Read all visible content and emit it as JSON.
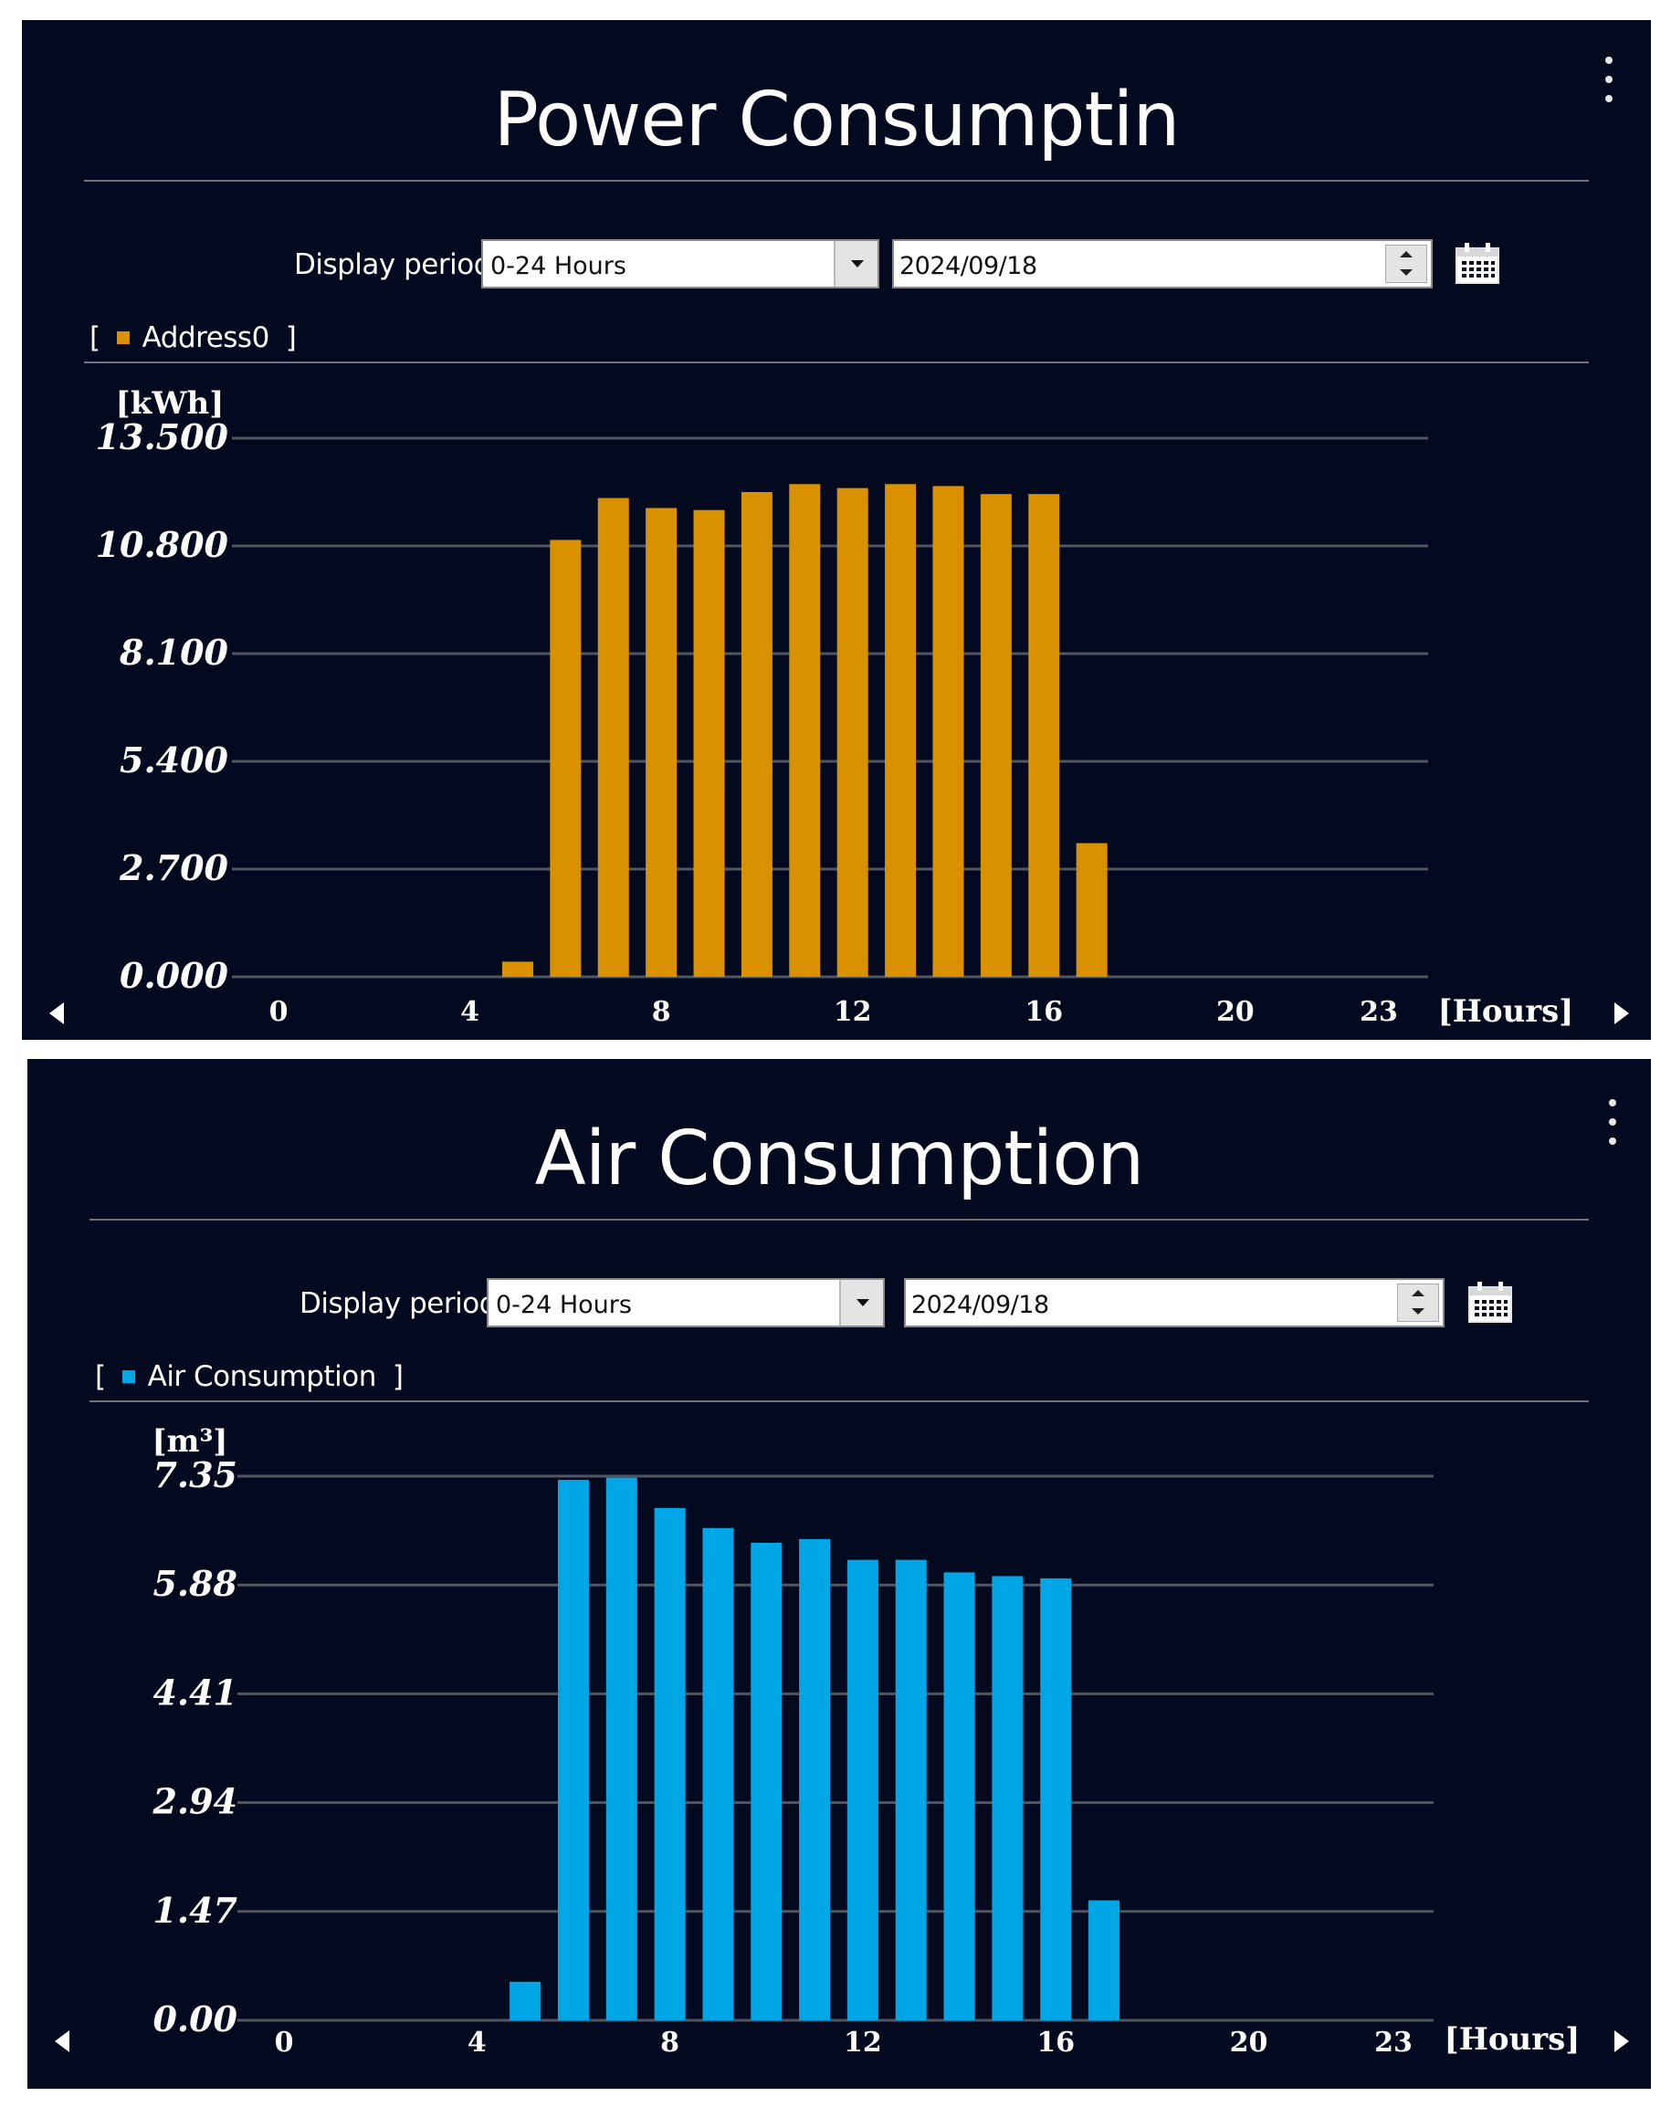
{
  "chart_data": [
    {
      "id": "power",
      "type": "bar",
      "title": "Power Consumptin",
      "ylabel": "[kWh]",
      "xlabel": "[Hours]",
      "ylim": [
        0,
        13.5
      ],
      "yticks": [
        "0.000",
        "2.700",
        "5.400",
        "8.100",
        "10.800",
        "13.500"
      ],
      "xticks": [
        "0",
        "4",
        "8",
        "12",
        "16",
        "20",
        "23"
      ],
      "xtick_values": [
        0,
        4,
        8,
        12,
        16,
        20,
        23
      ],
      "xlim": [
        0,
        23
      ],
      "legend": "Address0",
      "color": "#d99100",
      "grid": true,
      "categories": [
        5,
        6,
        7,
        8,
        9,
        10,
        11,
        12,
        13,
        14,
        15,
        16,
        17
      ],
      "values": [
        0.38,
        10.95,
        12.0,
        11.75,
        11.7,
        12.15,
        12.35,
        12.25,
        12.35,
        12.3,
        12.1,
        12.1,
        3.35
      ]
    },
    {
      "id": "air",
      "type": "bar",
      "title": "Air Consumption",
      "ylabel": "[m³]",
      "xlabel": "[Hours]",
      "ylim": [
        0,
        7.35
      ],
      "yticks": [
        "0.00",
        "1.47",
        "2.94",
        "4.41",
        "5.88",
        "7.35"
      ],
      "xticks": [
        "0",
        "4",
        "8",
        "12",
        "16",
        "20",
        "23"
      ],
      "xtick_values": [
        0,
        4,
        8,
        12,
        16,
        20,
        23
      ],
      "xlim": [
        0,
        23
      ],
      "legend": "Air Consumption",
      "color": "#00a6e6",
      "grid": true,
      "categories": [
        5,
        6,
        7,
        8,
        9,
        10,
        11,
        12,
        13,
        14,
        15,
        16,
        17
      ],
      "values": [
        0.52,
        7.3,
        7.33,
        6.92,
        6.65,
        6.45,
        6.5,
        6.22,
        6.22,
        6.05,
        6.0,
        5.97,
        1.62
      ]
    }
  ],
  "controls": {
    "period_label": "Display period",
    "period_value": "0-24 Hours",
    "date_value": "2024/09/18"
  },
  "colors": {
    "background": "#03091f",
    "grid": "#525562"
  }
}
